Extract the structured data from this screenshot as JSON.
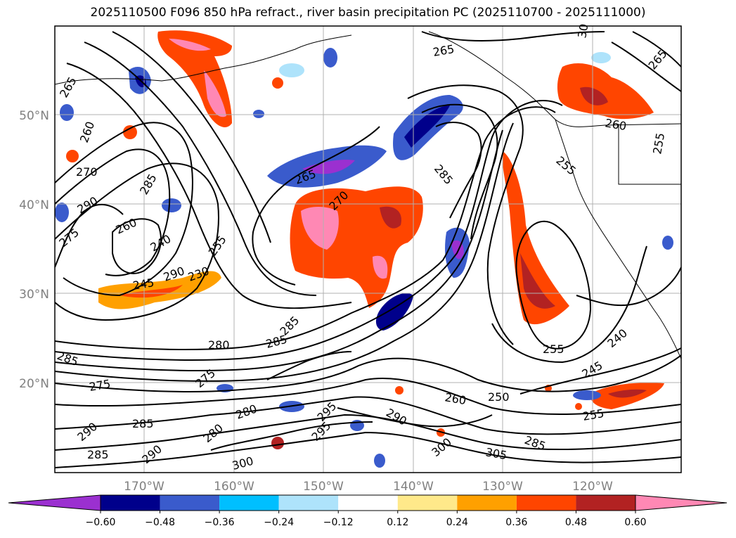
{
  "title": "2025110500 F096 850 hPa refract., river basin precipitation PC (2025110700 - 2025111000)",
  "lat_labels": [
    "50°N",
    "40°N",
    "30°N",
    "20°N"
  ],
  "lon_labels": [
    "170°W",
    "160°W",
    "150°W",
    "140°W",
    "130°W",
    "120°W"
  ],
  "colorbar": {
    "ticks": [
      "−0.60",
      "−0.48",
      "−0.36",
      "−0.24",
      "−0.12",
      "0.12",
      "0.24",
      "0.36",
      "0.48",
      "0.60"
    ],
    "colors": [
      "#9b30d0",
      "#00008b",
      "#3a5bcc",
      "#00bfff",
      "#aee3fb",
      "#ffffff",
      "#ffe98a",
      "#ffa000",
      "#ff4500",
      "#b22222",
      "#ff88b4"
    ]
  },
  "contour_labels": [
    "265",
    "260",
    "270",
    "290",
    "275",
    "260",
    "285",
    "240",
    "255",
    "245",
    "230",
    "285",
    "270",
    "265",
    "285",
    "265",
    "265",
    "255",
    "255",
    "280",
    "285",
    "275",
    "285",
    "275",
    "280",
    "280",
    "290",
    "295",
    "285",
    "290",
    "285",
    "300",
    "295",
    "300",
    "305",
    "290",
    "260",
    "250",
    "255",
    "245",
    "240",
    "255",
    "285",
    "260",
    "30",
    "290"
  ]
}
